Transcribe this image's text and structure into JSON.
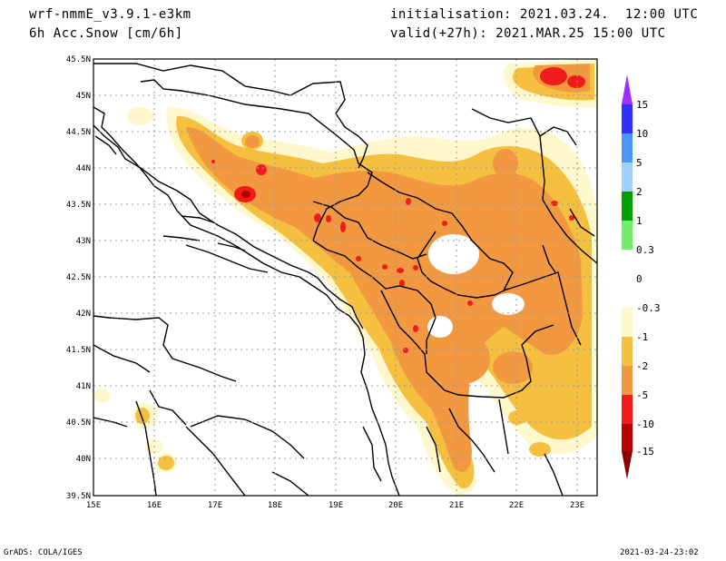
{
  "header": {
    "model": "wrf-nmmE_v3.9.1-e3km",
    "field": "6h Acc.Snow [cm/6h]",
    "init": "initialisation: 2021.03.24.  12:00 UTC",
    "valid": "valid(+27h): 2021.MAR.25 15:00 UTC"
  },
  "footer": {
    "left": "GrADS: COLA/IGES",
    "right": "2021-03-24-23:02"
  },
  "map": {
    "lon_labels": [
      "15E",
      "16E",
      "17E",
      "18E",
      "19E",
      "20E",
      "21E",
      "22E",
      "23E"
    ],
    "lat_labels": [
      "45.5N",
      "45N",
      "44.5N",
      "44N",
      "43.5N",
      "43N",
      "42.5N",
      "42N",
      "41.5N",
      "41N",
      "40.5N",
      "40N",
      "39.5N"
    ],
    "grid": "dotted",
    "colors": {
      "light": "#fff8cc",
      "yellow": "#f5c040",
      "orange": "#f29840",
      "red": "#f01c1c",
      "darkred": "#b40000"
    }
  },
  "colorbar": {
    "labels": [
      "15",
      "10",
      "5",
      "2",
      "1",
      "0.3",
      "0",
      "-0.3",
      "-1",
      "-2",
      "-5",
      "-10",
      "-15"
    ],
    "colors": [
      "#9b30ff",
      "#3030ff",
      "#4c96ff",
      "#a0d2ff",
      "#00a000",
      "#70ee70",
      "#ffffff",
      "#ffffff",
      "#fff8cc",
      "#f5c040",
      "#f29840",
      "#f01c1c",
      "#b40000"
    ]
  }
}
